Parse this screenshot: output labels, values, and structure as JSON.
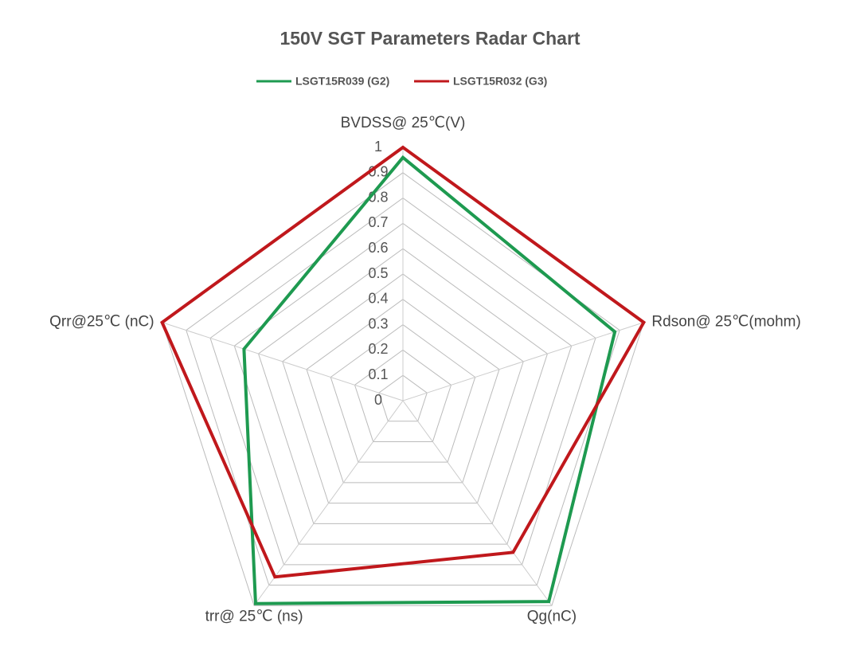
{
  "chart_data": {
    "type": "radar",
    "title": "150V  SGT Parameters Radar Chart",
    "categories": [
      "BVDSS@ 25℃(V)",
      "Rdson@ 25℃(mohm)",
      "Qg(nC)",
      "trr@ 25℃ (ns)",
      "Qrr@25℃ (nC)"
    ],
    "series": [
      {
        "name": "LSGT15R039 (G2)",
        "color": "#1e9a50",
        "values": [
          0.96,
          0.88,
          0.98,
          0.99,
          0.66
        ]
      },
      {
        "name": "LSGT15R032 (G3)",
        "color": "#c0181c",
        "values": [
          1,
          1,
          0.74,
          0.86,
          1
        ]
      }
    ],
    "ylim": [
      0,
      1
    ],
    "yticks": [
      0,
      0.1,
      0.2,
      0.3,
      0.4,
      0.5,
      0.6,
      0.7,
      0.8,
      0.9,
      1
    ],
    "grid": true
  }
}
